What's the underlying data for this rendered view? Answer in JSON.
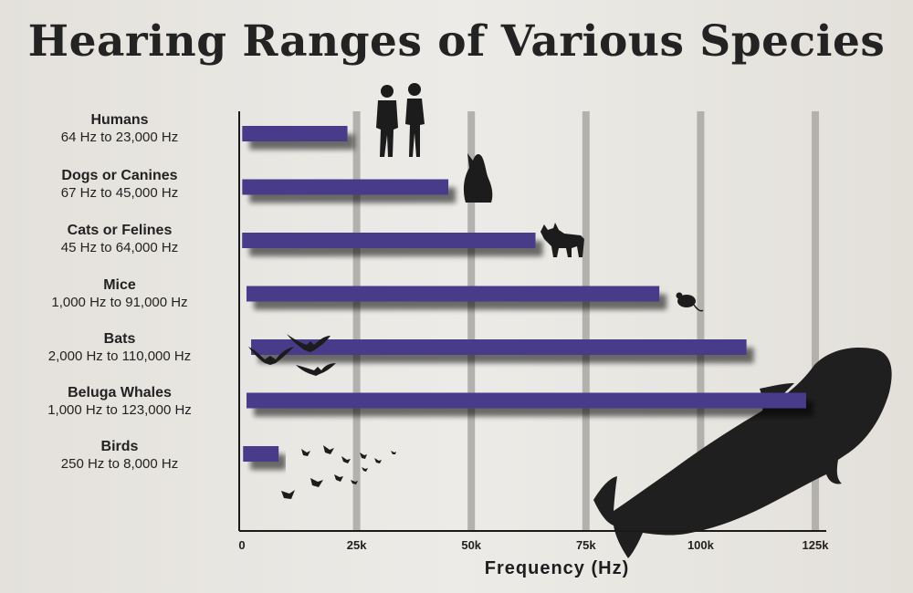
{
  "title": "Hearing Ranges of Various Species",
  "chart_data": {
    "type": "bar",
    "orientation": "horizontal",
    "title": "Hearing Ranges of Various Species",
    "xlabel": "Frequency (Hz)",
    "ylabel": "",
    "xlim": [
      0,
      125000
    ],
    "grid": true,
    "ticks": [
      {
        "value": 0,
        "label": "0"
      },
      {
        "value": 25000,
        "label": "25k"
      },
      {
        "value": 50000,
        "label": "50k"
      },
      {
        "value": 75000,
        "label": "75k"
      },
      {
        "value": 100000,
        "label": "100k"
      },
      {
        "value": 125000,
        "label": "125k"
      }
    ],
    "bar_color": "#463a8a",
    "categories": [
      "Humans",
      "Dogs or Canines",
      "Cats or Felines",
      "Mice",
      "Bats",
      "Beluga Whales",
      "Birds"
    ],
    "series": [
      {
        "values": [
          {
            "low": 64,
            "high": 23000
          },
          {
            "low": 67,
            "high": 45000
          },
          {
            "low": 45,
            "high": 64000
          },
          {
            "low": 1000,
            "high": 91000
          },
          {
            "low": 2000,
            "high": 110000
          },
          {
            "low": 1000,
            "high": 123000
          },
          {
            "low": 250,
            "high": 8000
          }
        ]
      }
    ],
    "range_labels": [
      "64 Hz to 23,000 Hz",
      "67 Hz to 45,000 Hz",
      "45 Hz to 64,000 Hz",
      "1,000 Hz to 91,000 Hz",
      "2,000 Hz to 110,000 Hz",
      "1,000 Hz to 123,000 Hz",
      "250 Hz to 8,000 Hz"
    ],
    "illustrations": [
      "human-couple-icon",
      "howling-wolf-icon",
      "lynx-icon",
      "mouse-icon",
      "bats-icon",
      "beluga-whale-icon",
      "birds-icon"
    ]
  }
}
